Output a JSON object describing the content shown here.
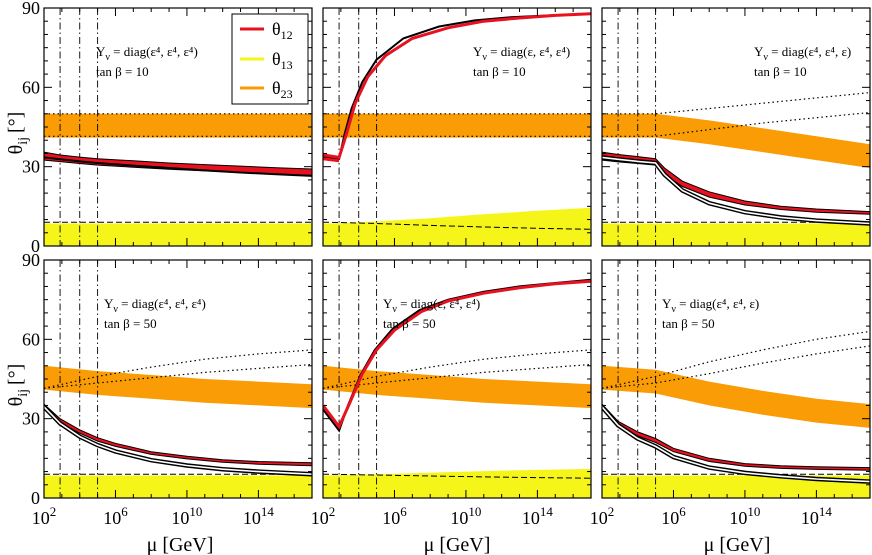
{
  "figure": {
    "xlabel": "μ [GeV]",
    "ylabel_main": "θ",
    "ylabel_sub": "ij",
    "ylabel_unit": "[°]"
  },
  "legend": {
    "position": "top-left panel, upper middle",
    "items": [
      {
        "main": "θ",
        "sub": "12",
        "color": "#e8111f"
      },
      {
        "main": "θ",
        "sub": "13",
        "color": "#f5f51a"
      },
      {
        "main": "θ",
        "sub": "23",
        "color": "#f99c05"
      }
    ]
  },
  "colors": {
    "theta12_band": "#e8111f",
    "theta13_band": "#f5f51a",
    "theta23_band": "#f99c05",
    "black_curve": "#000000"
  },
  "chart_data": [
    {
      "type": "line",
      "panel": "top-left",
      "annotation_lines": [
        "Y_ν = diag(ε⁴, ε⁴, ε⁴)",
        "tan β = 10"
      ],
      "xscale": "log10",
      "xlim": [
        2,
        17
      ],
      "ylim": [
        0,
        90
      ],
      "xticks": [
        2,
        6,
        10,
        14
      ],
      "yticks": [
        0,
        30,
        60,
        90
      ],
      "vertical_dashdot_log10_mu": [
        2.9,
        4.0,
        5.0
      ],
      "series": [
        {
          "name": "θ12 band (red)",
          "x": [
            2,
            2.9,
            4,
            5,
            7,
            9,
            11,
            13,
            15,
            17
          ],
          "lo": [
            32.5,
            31.9,
            31.2,
            30.6,
            29.8,
            29.0,
            28.4,
            27.8,
            27.2,
            26.7
          ],
          "hi": [
            35.5,
            34.4,
            33.6,
            33.0,
            32.2,
            31.4,
            30.8,
            30.2,
            29.6,
            29.1
          ]
        },
        {
          "name": "θ12 black",
          "x": [
            2,
            2.9,
            4,
            5,
            7,
            9,
            11,
            13,
            15,
            17
          ],
          "y": [
            33.5,
            32.8,
            32.0,
            31.4,
            30.4,
            29.5,
            28.6,
            27.8,
            27.1,
            26.5
          ]
        },
        {
          "name": "θ23 band (orange)",
          "x": [
            2,
            17
          ],
          "lo": [
            41,
            41
          ],
          "hi": [
            50,
            50
          ]
        },
        {
          "name": "θ23 dotted lo",
          "x": [
            2,
            17
          ],
          "y": [
            41.5,
            41.5
          ]
        },
        {
          "name": "θ23 dotted hi",
          "x": [
            2,
            17
          ],
          "y": [
            50,
            50
          ]
        },
        {
          "name": "θ13 band (yellow)",
          "x": [
            2,
            17
          ],
          "lo": [
            0,
            0
          ],
          "hi": [
            8.5,
            8.5
          ]
        },
        {
          "name": "θ13 dashed",
          "x": [
            2,
            17
          ],
          "y": [
            9,
            9
          ]
        }
      ]
    },
    {
      "type": "line",
      "panel": "top-middle",
      "annotation_lines": [
        "Y_ν = diag(ε, ε⁴, ε⁴)",
        "tan β = 10"
      ],
      "xscale": "log10",
      "xlim": [
        2,
        17
      ],
      "ylim": [
        0,
        90
      ],
      "xticks": [
        2,
        6,
        10,
        14
      ],
      "yticks": [
        0,
        30,
        60,
        90
      ],
      "vertical_dashdot_log10_mu": [
        2.9,
        4.0,
        5.0
      ],
      "series": [
        {
          "name": "θ12 red",
          "x": [
            2,
            2.9,
            3.3,
            3.8,
            4.5,
            5.5,
            7,
            9,
            11,
            13,
            15,
            17
          ],
          "y": [
            34.5,
            33.5,
            42,
            54,
            64,
            72,
            78.5,
            82.5,
            85,
            86.2,
            87.2,
            87.8
          ]
        },
        {
          "name": "θ12 red lower",
          "x": [
            2,
            2.9
          ],
          "y": [
            33,
            32.2
          ]
        },
        {
          "name": "θ12 black",
          "x": [
            2,
            2.9,
            3.2,
            3.6,
            4.2,
            5,
            6.5,
            8.5,
            10.5,
            12.5,
            15,
            17
          ],
          "y": [
            33.8,
            33.0,
            42,
            52,
            62,
            70.5,
            78.5,
            83,
            85.3,
            86.5,
            87.3,
            87.8
          ]
        },
        {
          "name": "θ23 band (orange)",
          "x": [
            2,
            17
          ],
          "lo": [
            41,
            41
          ],
          "hi": [
            50,
            50
          ]
        },
        {
          "name": "θ23 dotted lo",
          "x": [
            2,
            17
          ],
          "y": [
            41.5,
            41.5
          ]
        },
        {
          "name": "θ23 dotted hi",
          "x": [
            2,
            17
          ],
          "y": [
            50,
            50
          ]
        },
        {
          "name": "θ13 band (yellow)",
          "x": [
            2,
            2.9,
            5,
            8,
            11,
            14,
            17
          ],
          "lo": [
            0,
            0,
            0,
            0,
            0,
            0,
            0
          ],
          "hi": [
            8.5,
            8.6,
            9.3,
            10.5,
            12,
            13.3,
            14.5
          ]
        },
        {
          "name": "θ13 dashed",
          "x": [
            2,
            2.9,
            5,
            8,
            11,
            14,
            17
          ],
          "y": [
            9,
            8.9,
            8.5,
            7.8,
            7.2,
            6.7,
            6.3
          ]
        }
      ]
    },
    {
      "type": "line",
      "panel": "top-right",
      "annotation_lines": [
        "Y_ν = diag(ε⁴, ε⁴, ε)",
        "tan β = 10"
      ],
      "xscale": "log10",
      "xlim": [
        2,
        17
      ],
      "ylim": [
        0,
        90
      ],
      "xticks": [
        2,
        6,
        10,
        14
      ],
      "yticks": [
        0,
        30,
        60,
        90
      ],
      "vertical_dashdot_log10_mu": [
        2.9,
        4.0,
        5.0
      ],
      "series": [
        {
          "name": "θ12 band (red)",
          "x": [
            2,
            2.9,
            4,
            5,
            5.5,
            6.5,
            8,
            10,
            12,
            14,
            17
          ],
          "lo": [
            32.5,
            31.8,
            31.2,
            30.6,
            27,
            22.5,
            18.5,
            15.5,
            13.8,
            12.8,
            12.0
          ],
          "hi": [
            35.5,
            34.6,
            33.8,
            33.0,
            29.5,
            24.5,
            20.5,
            17.0,
            15.0,
            14.0,
            13.0
          ]
        },
        {
          "name": "θ12 black (double)",
          "x": [
            2,
            2.9,
            4,
            5,
            5.5,
            6.5,
            8,
            10,
            12,
            14,
            17
          ],
          "y": [
            33.5,
            32.8,
            32.0,
            31.4,
            27,
            21,
            16.2,
            12.8,
            10.8,
            9.6,
            8.5
          ]
        },
        {
          "name": "θ23 band (orange)",
          "x": [
            2,
            5,
            8,
            11,
            14,
            17
          ],
          "lo": [
            41,
            41,
            38.5,
            35.5,
            32.5,
            29.5
          ],
          "hi": [
            50,
            50,
            47.5,
            44.5,
            41.5,
            38.5
          ]
        },
        {
          "name": "θ23 dotted lo",
          "x": [
            2,
            5,
            8,
            11,
            14,
            17
          ],
          "y": [
            41.5,
            41.5,
            44,
            46.5,
            48.5,
            50.5
          ]
        },
        {
          "name": "θ23 dotted hi",
          "x": [
            2,
            5,
            8,
            11,
            14,
            17
          ],
          "y": [
            50,
            50,
            52,
            54,
            56,
            58
          ]
        },
        {
          "name": "θ13 band (yellow)",
          "x": [
            2,
            17
          ],
          "lo": [
            0,
            0
          ],
          "hi": [
            8.5,
            8.5
          ]
        },
        {
          "name": "θ13 dashed",
          "x": [
            2,
            17
          ],
          "y": [
            9,
            9
          ]
        }
      ]
    },
    {
      "type": "line",
      "panel": "bottom-left",
      "annotation_lines": [
        "Y_ν = diag(ε⁴, ε⁴, ε⁴)",
        "tan β = 50"
      ],
      "xscale": "log10",
      "xlim": [
        2,
        17
      ],
      "ylim": [
        0,
        90
      ],
      "xticks": [
        2,
        6,
        10,
        14
      ],
      "yticks": [
        0,
        30,
        60,
        90
      ],
      "vertical_dashdot_log10_mu": [
        2.9,
        4.0,
        5.0
      ],
      "series": [
        {
          "name": "θ12 band (red)",
          "x": [
            2,
            2.9,
            4,
            5,
            6,
            8,
            10,
            12,
            14,
            17
          ],
          "lo": [
            33.5,
            28.5,
            24.5,
            21.5,
            19.5,
            16.5,
            14.8,
            13.5,
            12.8,
            12.2
          ],
          "hi": [
            35.5,
            30.0,
            25.8,
            22.8,
            20.7,
            17.5,
            15.8,
            14.5,
            13.8,
            13.3
          ]
        },
        {
          "name": "θ12 black (double)",
          "x": [
            2,
            2.9,
            4,
            5,
            6,
            8,
            10,
            12,
            14,
            17
          ],
          "y": [
            34.5,
            28.2,
            23.2,
            20.0,
            17.6,
            14.3,
            12.3,
            10.9,
            10.0,
            9.0
          ]
        },
        {
          "name": "θ23 band (orange)",
          "x": [
            2,
            5,
            8,
            11,
            14,
            17
          ],
          "lo": [
            41,
            39,
            37.5,
            36,
            35,
            34
          ],
          "hi": [
            50,
            48,
            46.5,
            45,
            44,
            43
          ]
        },
        {
          "name": "θ23 dotted lo",
          "x": [
            2,
            5,
            8,
            11,
            14,
            17
          ],
          "y": [
            41.5,
            43.5,
            45.5,
            47.5,
            49,
            50.5
          ]
        },
        {
          "name": "θ23 dotted hi",
          "x": [
            2,
            5,
            8,
            11,
            14,
            17
          ],
          "y": [
            41.5,
            46,
            49.5,
            52.5,
            54.5,
            56
          ]
        },
        {
          "name": "θ13 band (yellow)",
          "x": [
            2,
            17
          ],
          "lo": [
            0,
            0
          ],
          "hi": [
            8.5,
            8.5
          ]
        },
        {
          "name": "θ13 dashed",
          "x": [
            2,
            17
          ],
          "y": [
            9,
            9
          ]
        }
      ]
    },
    {
      "type": "line",
      "panel": "bottom-middle",
      "annotation_lines": [
        "Y_ν = diag(ε, ε⁴, ε⁴)",
        "tan β = 50"
      ],
      "xscale": "log10",
      "xlim": [
        2,
        17
      ],
      "ylim": [
        0,
        90
      ],
      "xticks": [
        2,
        6,
        10,
        14
      ],
      "yticks": [
        0,
        30,
        60,
        90
      ],
      "vertical_dashdot_log10_mu": [
        2.9,
        4.0,
        5.0
      ],
      "series": [
        {
          "name": "θ12 red",
          "x": [
            2,
            2.9,
            3.5,
            4.2,
            5,
            6,
            7.5,
            9,
            11,
            13,
            15,
            17
          ],
          "y": [
            35,
            27,
            36,
            47,
            56,
            63.5,
            70.5,
            74.5,
            77.5,
            79.5,
            81,
            82
          ]
        },
        {
          "name": "θ12 black",
          "x": [
            2,
            2.9,
            3.4,
            4.1,
            4.9,
            5.9,
            7.4,
            9,
            11,
            13,
            15,
            17
          ],
          "y": [
            33.5,
            25.5,
            35,
            46.5,
            56,
            64,
            71,
            75,
            78,
            80,
            81.3,
            82.5
          ]
        },
        {
          "name": "θ23 band (orange)",
          "x": [
            2,
            5,
            8,
            11,
            14,
            17
          ],
          "lo": [
            41,
            39,
            37.5,
            36,
            35,
            34
          ],
          "hi": [
            50,
            48,
            46.5,
            45,
            44,
            43
          ]
        },
        {
          "name": "θ23 dotted lo",
          "x": [
            2,
            5,
            8,
            11,
            14,
            17
          ],
          "y": [
            41.5,
            43.5,
            45.5,
            47.5,
            49,
            50.5
          ]
        },
        {
          "name": "θ23 dotted hi",
          "x": [
            2,
            5,
            8,
            11,
            14,
            17
          ],
          "y": [
            41.5,
            46,
            49.5,
            52.5,
            54.5,
            56
          ]
        },
        {
          "name": "θ13 band (yellow)",
          "x": [
            2,
            5,
            9,
            13,
            17
          ],
          "lo": [
            0,
            0,
            0,
            0,
            0
          ],
          "hi": [
            8.5,
            9.0,
            9.8,
            10.5,
            11.0
          ]
        },
        {
          "name": "θ13 dashed",
          "x": [
            2,
            5,
            9,
            13,
            17
          ],
          "y": [
            9,
            8.7,
            8.2,
            7.8,
            7.5
          ]
        }
      ]
    },
    {
      "type": "line",
      "panel": "bottom-right",
      "annotation_lines": [
        "Y_ν = diag(ε⁴, ε⁴, ε)",
        "tan β = 50"
      ],
      "xscale": "log10",
      "xlim": [
        2,
        17
      ],
      "ylim": [
        0,
        90
      ],
      "xticks": [
        2,
        6,
        10,
        14
      ],
      "yticks": [
        0,
        30,
        60,
        90
      ],
      "vertical_dashdot_log10_mu": [
        2.9,
        4.0,
        5.0
      ],
      "series": [
        {
          "name": "θ12 band (red)",
          "x": [
            2,
            2.9,
            4,
            5,
            6,
            8,
            10,
            12,
            14,
            17
          ],
          "lo": [
            33.5,
            27.5,
            23.5,
            21.0,
            17.5,
            13.8,
            12.0,
            11.2,
            10.8,
            10.5
          ],
          "hi": [
            35.5,
            29.0,
            25.0,
            22.5,
            18.8,
            15.0,
            13.0,
            12.2,
            11.8,
            11.5
          ]
        },
        {
          "name": "θ12 black (double)",
          "x": [
            2,
            2.9,
            4,
            5,
            6,
            8,
            10,
            12,
            14,
            17
          ],
          "y": [
            34.5,
            27.5,
            22.5,
            19.5,
            15.5,
            11.5,
            9.5,
            8.2,
            7.2,
            6.2
          ]
        },
        {
          "name": "θ23 band (orange)",
          "x": [
            2,
            5,
            8,
            11,
            14,
            17
          ],
          "lo": [
            41,
            39.5,
            35,
            31.5,
            28.5,
            26.5
          ],
          "hi": [
            50,
            48.5,
            44,
            40.5,
            37.5,
            35.5
          ]
        },
        {
          "name": "θ23 dotted lo",
          "x": [
            2,
            5,
            8,
            11,
            14,
            17
          ],
          "y": [
            41.5,
            43.5,
            47,
            51,
            54.5,
            57.5
          ]
        },
        {
          "name": "θ23 dotted hi",
          "x": [
            2,
            5,
            8,
            11,
            14,
            17
          ],
          "y": [
            41.5,
            46,
            51.5,
            56,
            60,
            63
          ]
        },
        {
          "name": "θ13 band (yellow)",
          "x": [
            2,
            17
          ],
          "lo": [
            0,
            0
          ],
          "hi": [
            8.5,
            8.5
          ]
        },
        {
          "name": "θ13 dashed",
          "x": [
            2,
            17
          ],
          "y": [
            9,
            9
          ]
        }
      ]
    }
  ]
}
